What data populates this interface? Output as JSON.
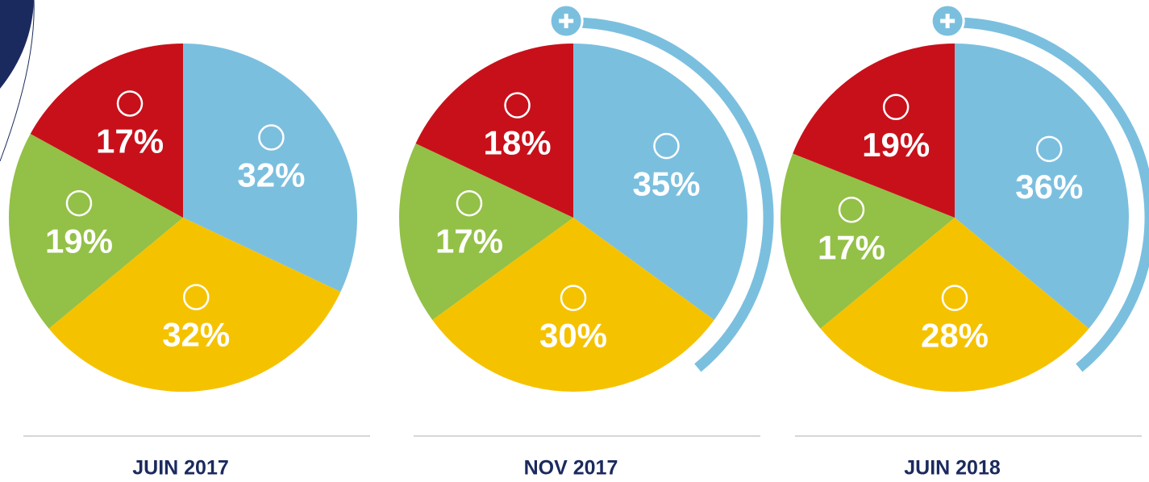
{
  "chart_data": [
    {
      "type": "pie",
      "title": "JUIN 2017",
      "values": [
        32,
        32,
        19,
        17
      ],
      "value_labels": [
        "32%",
        "32%",
        "19%",
        "17%"
      ],
      "colors": [
        "#7bbfdf",
        "#f5c200",
        "#93c047",
        "#c8101a"
      ]
    },
    {
      "type": "pie",
      "title": "NOV 2017",
      "values": [
        35,
        30,
        17,
        18
      ],
      "value_labels": [
        "35%",
        "30%",
        "17%",
        "18%"
      ],
      "colors": [
        "#7bbfdf",
        "#f5c200",
        "#93c047",
        "#c8101a"
      ]
    },
    {
      "type": "pie",
      "title": "JUIN 2018",
      "values": [
        36,
        28,
        17,
        19
      ],
      "value_labels": [
        "36%",
        "28%",
        "17%",
        "19%"
      ],
      "colors": [
        "#7bbfdf",
        "#f5c200",
        "#93c047",
        "#c8101a"
      ]
    }
  ]
}
